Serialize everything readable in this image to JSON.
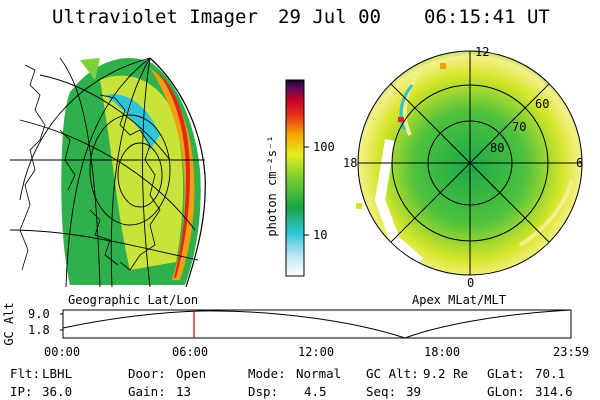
{
  "header": {
    "title": "Ultraviolet Imager",
    "date": "29 Jul 00",
    "time": "06:15:41 UT"
  },
  "left_panel": {
    "caption": "Geographic Lat/Lon"
  },
  "right_panel": {
    "caption": "Apex MLat/MLT",
    "mlt_labels": [
      "12",
      "18",
      "6",
      "0"
    ],
    "mlat_labels": [
      "60",
      "70",
      "80"
    ]
  },
  "colorbar": {
    "unit_label": "photon cm⁻²s⁻¹",
    "tick_labels": [
      "100",
      "10"
    ]
  },
  "timeline": {
    "axis_label": "GC Alt",
    "y_ticks": [
      "9.0",
      "1.8"
    ],
    "x_ticks": [
      "00:00",
      "06:00",
      "12:00",
      "18:00",
      "23:59"
    ],
    "current_time_marker": "06:15"
  },
  "info": {
    "filter": {
      "label": "Flt:",
      "value": "LBHL"
    },
    "door": {
      "label": "Door:",
      "value": "Open"
    },
    "mode": {
      "label": "Mode:",
      "value": "Normal"
    },
    "gc_alt": {
      "label": "GC Alt:",
      "value": "9.2 Re"
    },
    "glat": {
      "label": "GLat:",
      "value": "70.1"
    },
    "ip": {
      "label": "IP:",
      "value": "36.0"
    },
    "gain": {
      "label": "Gain:",
      "value": "13"
    },
    "dsp": {
      "label": "Dsp:",
      "value": "4.5"
    },
    "seq": {
      "label": "Seq:",
      "value": "39"
    },
    "glon": {
      "label": "GLon:",
      "value": "314.6"
    }
  },
  "colors": {
    "background": "#ffffff",
    "foreground": "#000000",
    "time_marker": "#cc0000"
  }
}
